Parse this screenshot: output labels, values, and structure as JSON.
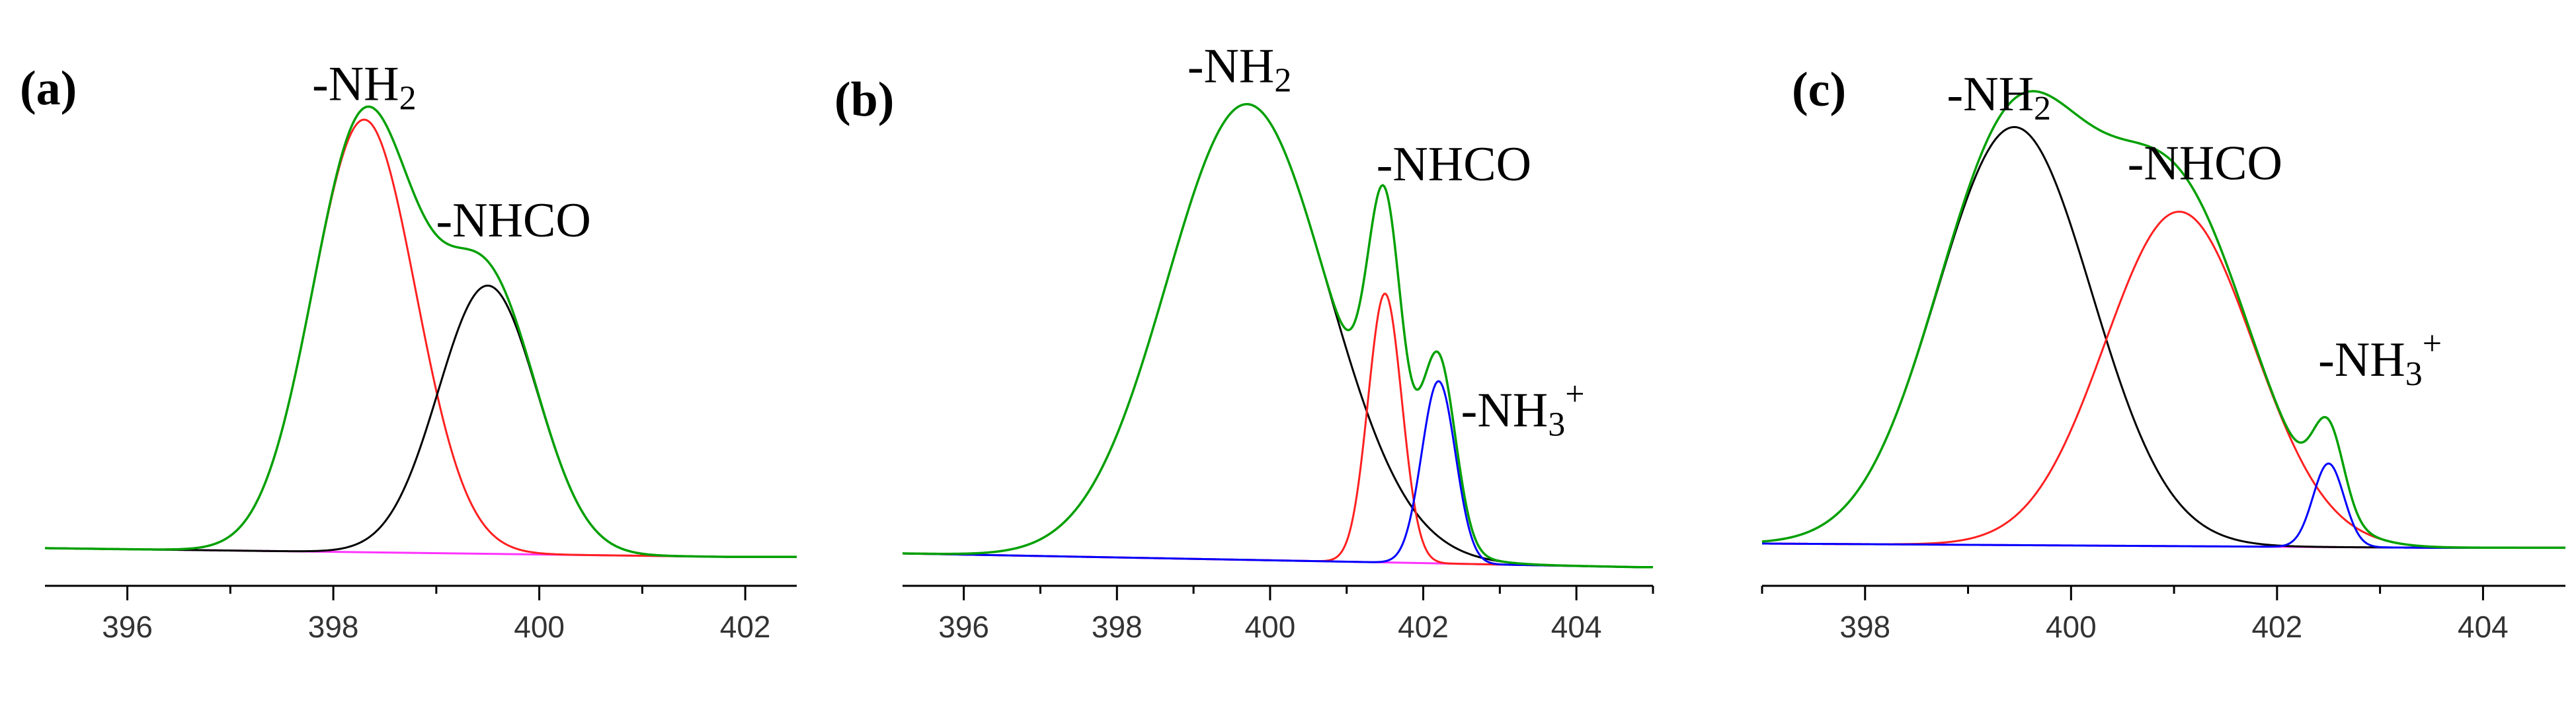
{
  "chart_data": [
    {
      "type": "line",
      "panel_label": "(a)",
      "xlim": [
        395.2,
        402.5
      ],
      "ylim": [
        -0.03,
        1.0
      ],
      "xticks": [
        396,
        398,
        400,
        402
      ],
      "annotations": [
        {
          "text": "-NH",
          "sub": "2",
          "sup": "",
          "x": 398.3,
          "y": 1.005
        },
        {
          "text": "-NHCO",
          "sub": "",
          "sup": "",
          "x": 399.75,
          "y": 0.69
        }
      ],
      "baseline": {
        "x": [
          395.2,
          401.8
        ],
        "y": [
          0.0,
          -0.02
        ]
      },
      "series": [
        {
          "color": "#ff2020",
          "peaks": [
            {
              "center": 398.3,
              "height": 1.0,
              "sigma": 0.5
            }
          ]
        },
        {
          "color": "#000000",
          "peaks": [
            {
              "center": 399.5,
              "height": 0.62,
              "sigma": 0.48
            }
          ]
        },
        {
          "color": "#00a000",
          "envelope": true,
          "peaks": [
            {
              "center": 398.3,
              "height": 1.0,
              "sigma": 0.5
            },
            {
              "center": 399.5,
              "height": 0.62,
              "sigma": 0.48
            }
          ]
        }
      ]
    },
    {
      "type": "line",
      "panel_label": "(b)",
      "xlim": [
        395.2,
        405.0
      ],
      "ylim": [
        -0.05,
        1.0
      ],
      "xticks": [
        396,
        398,
        400,
        402,
        404
      ],
      "annotations": [
        {
          "text": "-NH",
          "sub": "2",
          "sup": "",
          "x": 399.6,
          "y": 1.005
        },
        {
          "text": "-NHCO",
          "sub": "",
          "sup": "",
          "x": 402.4,
          "y": 0.79
        },
        {
          "text": "-NH",
          "sub": "3",
          "sup": "+",
          "x": 403.3,
          "y": 0.25
        }
      ],
      "baseline": {
        "x": [
          395.2,
          404.8
        ],
        "y": [
          0.0,
          -0.03
        ]
      },
      "series": [
        {
          "color": "#000000",
          "peaks": [
            {
              "center": 399.7,
              "height": 1.0,
              "sigma": 1.05
            }
          ]
        },
        {
          "color": "#ff2020",
          "peaks": [
            {
              "center": 401.5,
              "height": 0.59,
              "sigma": 0.22
            }
          ]
        },
        {
          "color": "#0000ff",
          "peaks": [
            {
              "center": 402.2,
              "height": 0.4,
              "sigma": 0.22
            }
          ]
        },
        {
          "color": "#00a000",
          "envelope": true,
          "peaks": [
            {
              "center": 399.7,
              "height": 1.0,
              "sigma": 1.05
            },
            {
              "center": 401.5,
              "height": 0.59,
              "sigma": 0.22
            },
            {
              "center": 402.2,
              "height": 0.4,
              "sigma": 0.22
            }
          ]
        }
      ]
    },
    {
      "type": "line",
      "panel_label": "(c)",
      "xlim": [
        397.0,
        404.8
      ],
      "ylim": [
        -0.03,
        1.0
      ],
      "xticks": [
        398,
        400,
        402,
        404
      ],
      "annotations": [
        {
          "text": "-NH",
          "sub": "2",
          "sup": "",
          "x": 399.3,
          "y": 1.005
        },
        {
          "text": "-NHCO",
          "sub": "",
          "sup": "",
          "x": 401.3,
          "y": 0.84
        },
        {
          "text": "-NH",
          "sub": "3",
          "sup": "+",
          "x": 403.0,
          "y": 0.37
        }
      ],
      "baseline": {
        "x": [
          397.0,
          403.5
        ],
        "y": [
          0.0,
          -0.01
        ]
      },
      "series": [
        {
          "color": "#000000",
          "peaks": [
            {
              "center": 399.45,
              "height": 1.0,
              "sigma": 0.75
            }
          ]
        },
        {
          "color": "#ff2020",
          "peaks": [
            {
              "center": 401.05,
              "height": 0.8,
              "sigma": 0.72
            }
          ]
        },
        {
          "color": "#0000ff",
          "peaks": [
            {
              "center": 402.5,
              "height": 0.2,
              "sigma": 0.15
            }
          ]
        },
        {
          "color": "#00a000",
          "envelope": true,
          "peaks": [
            {
              "center": 399.45,
              "height": 1.0,
              "sigma": 0.75
            },
            {
              "center": 401.05,
              "height": 0.8,
              "sigma": 0.72
            },
            {
              "center": 402.5,
              "height": 0.2,
              "sigma": 0.15
            }
          ]
        }
      ]
    }
  ],
  "colors": {
    "baseline": "#ff33ff",
    "axis": "#000000"
  }
}
